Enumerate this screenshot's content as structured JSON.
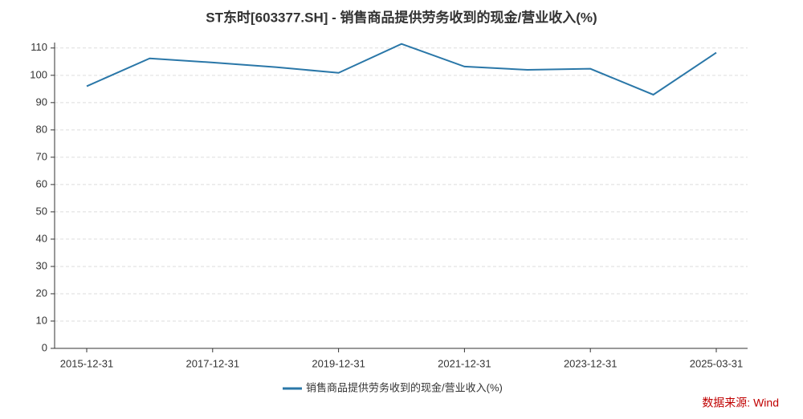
{
  "chart_data": {
    "type": "line",
    "title": "ST东时[603377.SH] - 销售商品提供劳务收到的现金/营业收入(%)",
    "categories": [
      "2015-12-31",
      null,
      "2017-12-31",
      null,
      "2019-12-31",
      null,
      "2021-12-31",
      null,
      "2023-12-31",
      null,
      "2025-03-31"
    ],
    "series": [
      {
        "name": "销售商品提供劳务收到的现金/营业收入(%)",
        "color": "#2a77a8",
        "values": [
          96,
          106.2,
          104.7,
          103,
          100.9,
          111.5,
          103.2,
          102,
          102.4,
          92.9,
          108.3
        ]
      }
    ],
    "ylim": [
      0,
      112
    ],
    "yticks": [
      0,
      10,
      20,
      30,
      40,
      50,
      60,
      70,
      80,
      90,
      100,
      110
    ],
    "grid": true,
    "legend": "bottom",
    "source": "数据来源: Wind"
  }
}
